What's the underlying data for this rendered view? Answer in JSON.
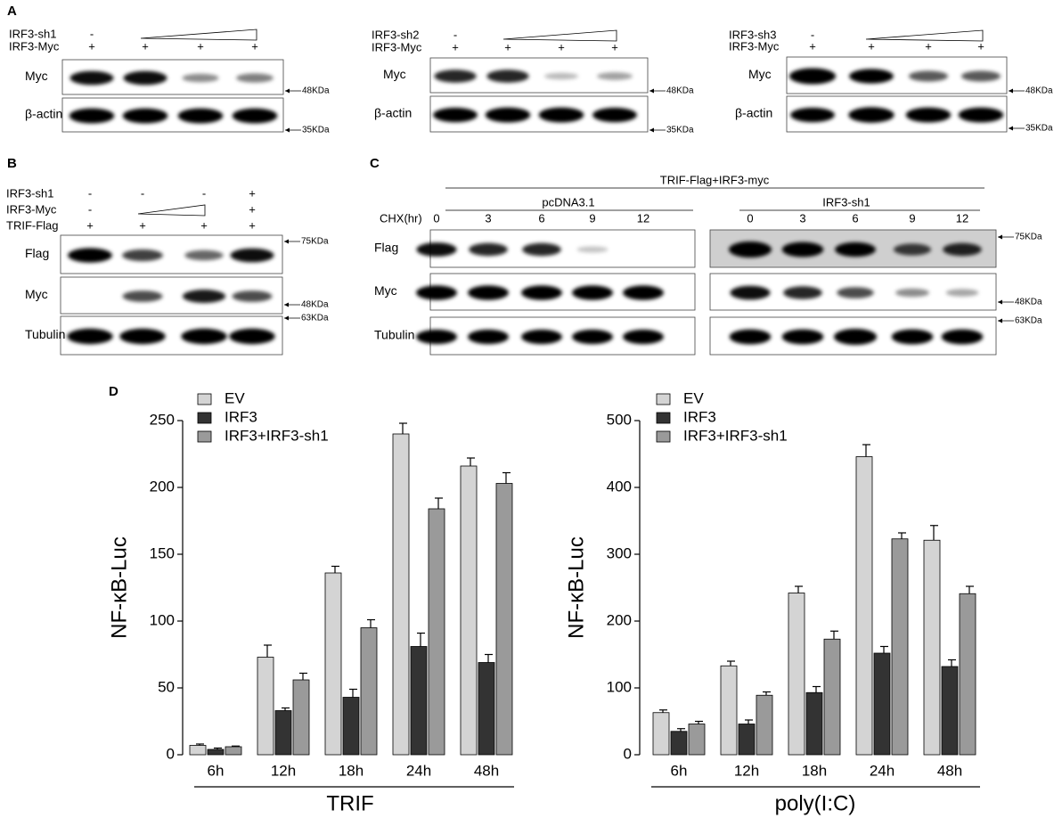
{
  "panel_a": {
    "label": "A",
    "blots": [
      {
        "rows": [
          {
            "name": "IRF3-sh1",
            "signs": [
              "-",
              null,
              null,
              null
            ]
          },
          {
            "name": "IRF3-Myc",
            "signs": [
              "+",
              "+",
              "+",
              "+"
            ]
          }
        ],
        "bands": [
          "Myc",
          "β-actin"
        ],
        "markers": [
          "48KDa",
          "35KDa"
        ]
      },
      {
        "rows": [
          {
            "name": "IRF3-sh2",
            "signs": [
              "-",
              null,
              null,
              null
            ]
          },
          {
            "name": "IRF3-Myc",
            "signs": [
              "+",
              "+",
              "+",
              "+"
            ]
          }
        ],
        "bands": [
          "Myc",
          "β-actin"
        ],
        "markers": [
          "48KDa",
          "35KDa"
        ]
      },
      {
        "rows": [
          {
            "name": "IRF3-sh3",
            "signs": [
              "-",
              null,
              null,
              null
            ]
          },
          {
            "name": "IRF3-Myc",
            "signs": [
              "+",
              "+",
              "+",
              "+"
            ]
          }
        ],
        "bands": [
          "Myc",
          "β-actin"
        ],
        "markers": [
          "48KDa",
          "35KDa"
        ]
      }
    ]
  },
  "panel_b": {
    "label": "B",
    "rows": [
      {
        "name": "IRF3-sh1",
        "signs": [
          "-",
          "-",
          "-",
          "+"
        ]
      },
      {
        "name": "IRF3-Myc",
        "signs": [
          "-",
          null,
          null,
          "+"
        ]
      },
      {
        "name": "TRIF-Flag",
        "signs": [
          "+",
          "+",
          "+",
          "+"
        ]
      }
    ],
    "bands": [
      "Flag",
      "Myc",
      "Tubulin"
    ],
    "markers": [
      "75KDa",
      "48KDa",
      "63KDa"
    ]
  },
  "panel_c": {
    "label": "C",
    "header": "TRIF-Flag+IRF3-myc",
    "groups": [
      "pcDNA3.1",
      "IRF3-sh1"
    ],
    "time_label": "CHX(hr)",
    "times": [
      0,
      3,
      6,
      9,
      12
    ],
    "bands": [
      "Flag",
      "Myc",
      "Tubulin"
    ],
    "markers": [
      "75KDa",
      "48KDa",
      "63KDa"
    ]
  },
  "panel_d": {
    "label": "D"
  },
  "chart_data": [
    {
      "type": "bar",
      "y_label": "NF-κB-Luc",
      "x_label": "TRIF",
      "categories": [
        "6h",
        "12h",
        "18h",
        "24h",
        "48h"
      ],
      "ylim": [
        0,
        250
      ],
      "yticks": [
        0,
        50,
        100,
        150,
        200,
        250
      ],
      "series": [
        {
          "name": "EV",
          "color": "#d4d4d4",
          "values": [
            7,
            73,
            136,
            240,
            216
          ],
          "errors": [
            1,
            9,
            5,
            8,
            6
          ]
        },
        {
          "name": "IRF3",
          "color": "#333333",
          "values": [
            4,
            33,
            43,
            81,
            69
          ],
          "errors": [
            1,
            2,
            6,
            10,
            6
          ]
        },
        {
          "name": "IRF3+IRF3-sh1",
          "color": "#9a9a9a",
          "values": [
            6,
            56,
            95,
            184,
            203
          ],
          "errors": [
            0.5,
            5,
            6,
            8,
            8
          ]
        }
      ]
    },
    {
      "type": "bar",
      "y_label": "NF-κB-Luc",
      "x_label": "poly(I:C)",
      "categories": [
        "6h",
        "12h",
        "18h",
        "24h",
        "48h"
      ],
      "ylim": [
        0,
        500
      ],
      "yticks": [
        0,
        100,
        200,
        300,
        400,
        500
      ],
      "series": [
        {
          "name": "EV",
          "color": "#d4d4d4",
          "values": [
            63,
            133,
            242,
            446,
            321
          ],
          "errors": [
            4,
            7,
            10,
            18,
            22
          ]
        },
        {
          "name": "IRF3",
          "color": "#333333",
          "values": [
            35,
            46,
            93,
            152,
            132
          ],
          "errors": [
            4,
            6,
            9,
            10,
            10
          ]
        },
        {
          "name": "IRF3+IRF3-sh1",
          "color": "#9a9a9a",
          "values": [
            46,
            89,
            173,
            323,
            241
          ],
          "errors": [
            4,
            5,
            12,
            9,
            11
          ]
        }
      ]
    }
  ]
}
